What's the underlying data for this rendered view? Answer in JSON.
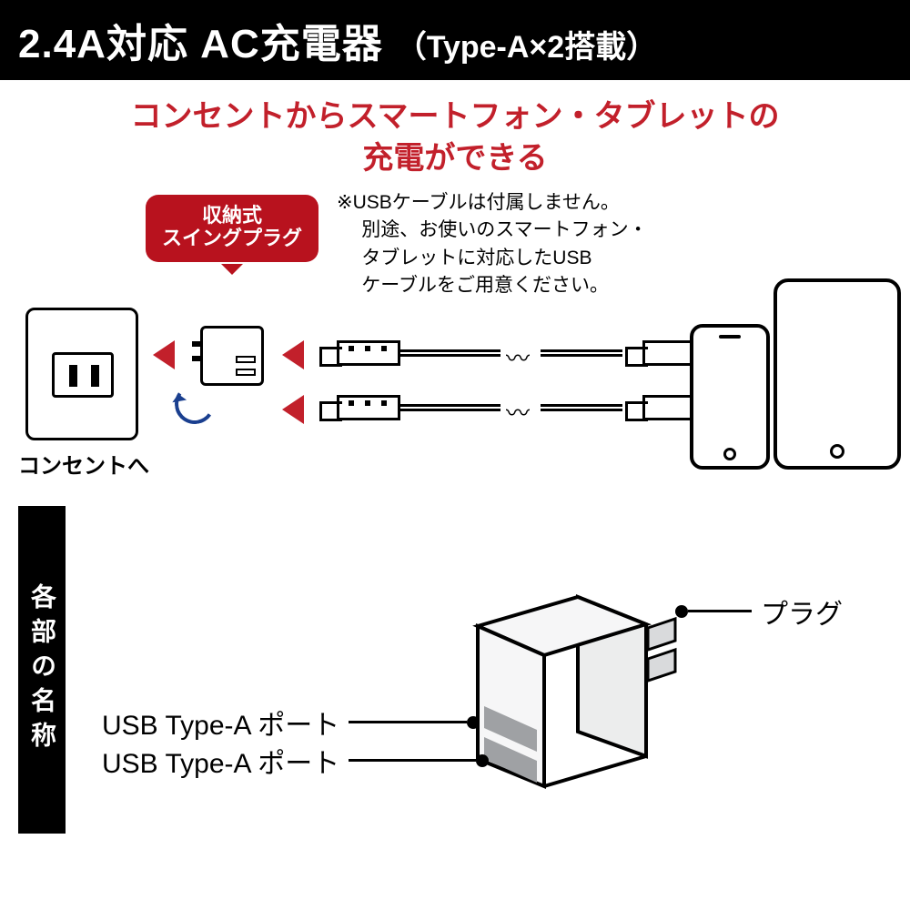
{
  "colors": {
    "black": "#000000",
    "white": "#ffffff",
    "red_accent": "#b8121e",
    "red_text": "#c2202b",
    "swing_arrow": "#1a3f8f",
    "charger_fill": "#f6f6f7",
    "port_gray": "#9fa1a4"
  },
  "header": {
    "main": "2.4A対応 AC充電器",
    "sub": "（Type-A×2搭載）"
  },
  "lead": {
    "line1": "コンセントからスマートフォン・タブレットの",
    "line2": "充電ができる"
  },
  "badge": {
    "line1": "収納式",
    "line2": "スイングプラグ"
  },
  "note": {
    "l1": "※USBケーブルは付属しません。",
    "l2": "別途、お使いのスマートフォン・",
    "l3": "タブレットに対応したUSB",
    "l4": "ケーブルをご用意ください。"
  },
  "outlet_label": "コンセントへ",
  "section2": {
    "title": "各部の名称",
    "callouts": {
      "plug": "プラグ",
      "port1": "USB Type-A ポート",
      "port2": "USB Type-A ポート"
    }
  },
  "triangles": {
    "fill": "#c2202b"
  },
  "charger_big": {
    "body_radius": 10,
    "stroke": "#000000",
    "port_height": 22,
    "port_gap": 16
  }
}
